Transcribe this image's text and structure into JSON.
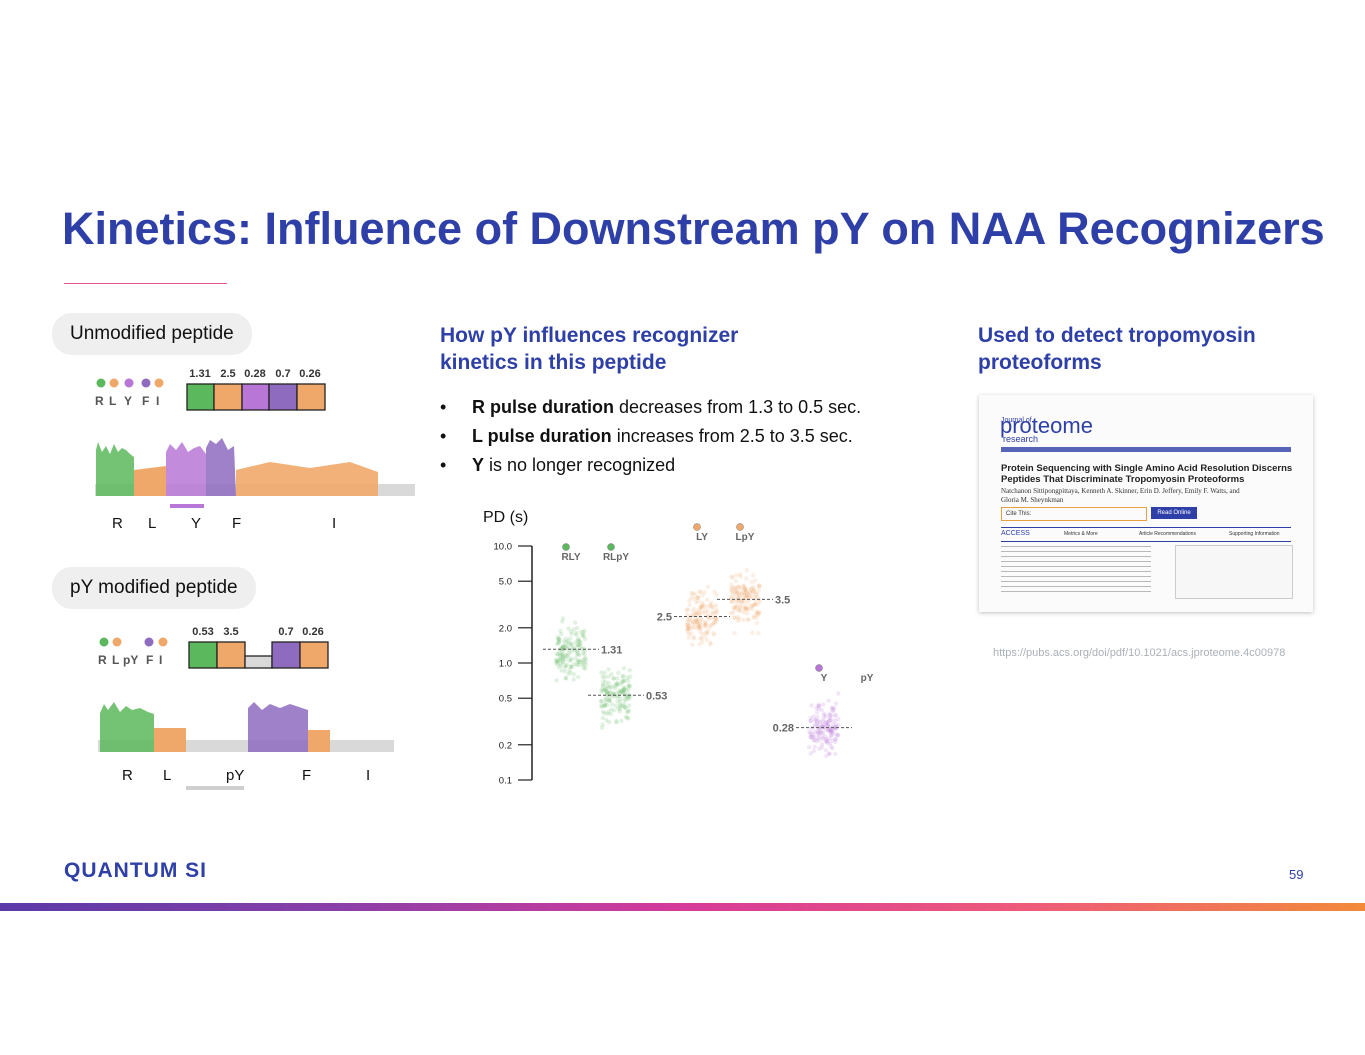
{
  "slide": {
    "title": "Kinetics: Influence of Downstream pY on NAA Recognizers",
    "page_number": "59",
    "brand": "QUANTUM SI"
  },
  "left": {
    "unmodified_label": "Unmodified peptide",
    "modified_label": "pY modified peptide",
    "unmodified": {
      "sequence": [
        "R",
        "L",
        "Y",
        "F",
        "I"
      ],
      "durations": [
        "1.31",
        "2.5",
        "0.28",
        "0.7",
        "0.26"
      ],
      "trace_labels": [
        "R",
        "L",
        "Y",
        "F",
        "I"
      ]
    },
    "modified": {
      "sequence": [
        "R",
        "L",
        "pY",
        "F",
        "I"
      ],
      "durations": [
        "0.53",
        "3.5",
        "0.7",
        "0.26"
      ],
      "trace_labels": [
        "R",
        "L",
        "pY",
        "F",
        "I"
      ]
    }
  },
  "middle": {
    "heading_line1": "How pY influences recognizer",
    "heading_line2": "kinetics in this peptide",
    "bullets": [
      {
        "bold": "R pulse duration",
        "rest": " decreases from 1.3 to 0.5 sec."
      },
      {
        "bold": "L pulse duration",
        "rest": " increases from 2.5 to 3.5 sec."
      },
      {
        "bold": "Y",
        "rest": " is no longer recognized"
      }
    ],
    "bullet_char": "•"
  },
  "chart_data": {
    "type": "scatter",
    "ylabel": "PD (s)",
    "yscale": "log",
    "ylim": [
      0.1,
      10.0
    ],
    "yticks": [
      "10.0",
      "5.0",
      "2.0",
      "1.0",
      "0.5",
      "0.2",
      "0.1"
    ],
    "ytick_values": [
      10.0,
      5.0,
      2.0,
      1.0,
      0.5,
      0.2,
      0.1
    ],
    "groups": [
      {
        "name": "RLY",
        "median": 1.31,
        "label": "1.31",
        "color": "#5cb85c"
      },
      {
        "name": "RLpY",
        "median": 0.53,
        "label": "0.53",
        "color": "#5cb85c"
      },
      {
        "name": "LY",
        "median": 2.5,
        "label": "2.5",
        "color": "#f0a86a"
      },
      {
        "name": "LpY",
        "median": 3.5,
        "label": "3.5",
        "color": "#f0a86a"
      },
      {
        "name": "Y",
        "median": 0.28,
        "label": "0.28",
        "color": "#b877d6"
      },
      {
        "name": "pY",
        "median": null,
        "label": "",
        "color": "#b877d6"
      }
    ]
  },
  "right": {
    "heading_line1": "Used to detect tropomyosin",
    "heading_line2": "proteoforms",
    "journal_small": "Journal of",
    "journal_name": "proteome",
    "journal_sub": "research",
    "paper_title": "Protein Sequencing with Single Amino Acid Resolution Discerns Peptides That Discriminate Tropomyosin Proteoforms",
    "authors": "Natchanon Sittipongpittaya, Kenneth A. Skinner, Erin D. Jeffery, Emily F. Watts, and Gloria M. Sheynkman",
    "cite_label": "Cite This:",
    "read_online": "Read Online",
    "access": "ACCESS",
    "metrics": "Metrics & More",
    "recommendations": "Article Recommendations",
    "supporting": "Supporting Information",
    "url": "https://pubs.acs.org/doi/pdf/10.1021/acs.jproteome.4c00978"
  },
  "colors": {
    "accent": "#2e3fa8",
    "green": "#5cb85c",
    "orange": "#f0a86a",
    "purple": "#b877d6",
    "violet": "#8e6bbf",
    "gray": "#cfcfcf"
  }
}
